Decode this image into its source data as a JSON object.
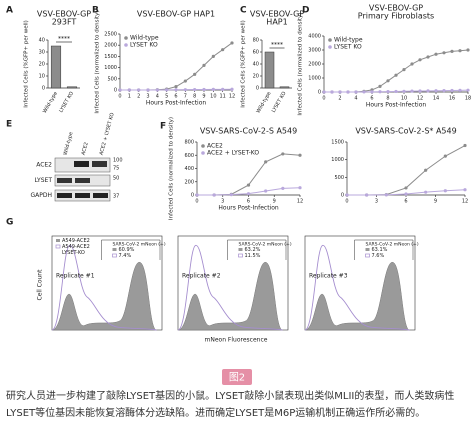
{
  "chart_data": [
    {
      "type": "bar",
      "panel": "A",
      "title": "VSV-EBOV-GP",
      "subtitle": "293FT",
      "ylabel": "Infected Cells (%GFP+ per well)",
      "categories": [
        "Wild-type",
        "LYSET KO"
      ],
      "values": [
        35,
        1
      ],
      "color": "#8c8c8c",
      "annotation": "****",
      "ylim": [
        0,
        40
      ],
      "yticks": [
        0,
        10,
        20,
        30,
        40
      ]
    },
    {
      "type": "line",
      "panel": "B",
      "title": "VSV-EBOV-GP HAP1",
      "ylabel": "Infected Cells (normalized to density)",
      "xlabel": "Hours Post-Infection",
      "x": [
        0,
        1,
        2,
        3,
        4,
        5,
        6,
        7,
        8,
        9,
        10,
        11,
        12
      ],
      "xlim": [
        0,
        12
      ],
      "xticks": [
        0,
        1,
        2,
        3,
        4,
        5,
        6,
        7,
        8,
        9,
        10,
        11,
        12
      ],
      "ylim": [
        0,
        2500
      ],
      "yticks": [
        0,
        500,
        1000,
        1500,
        2000,
        2500
      ],
      "legend": "upper left",
      "series": [
        {
          "name": "Wild-type",
          "color": "#8c8c8c",
          "values": [
            0,
            0,
            0,
            0,
            10,
            40,
            150,
            400,
            700,
            1100,
            1500,
            1800,
            2100
          ]
        },
        {
          "name": "LYSET KO",
          "color": "#b9a8dc",
          "values": [
            0,
            0,
            0,
            0,
            0,
            5,
            10,
            15,
            20,
            25,
            30,
            30,
            35
          ]
        }
      ]
    },
    {
      "type": "bar",
      "panel": "C",
      "title": "VSV-EBOV-GP",
      "subtitle": "HAP1",
      "ylabel": "Infected Cells (%GFP+ per well)",
      "categories": [
        "Wild-type",
        "LYSET KO"
      ],
      "values": [
        60,
        2
      ],
      "color": "#8c8c8c",
      "annotation": "****",
      "ylim": [
        0,
        80
      ],
      "yticks": [
        0,
        20,
        40,
        60,
        80
      ]
    },
    {
      "type": "line",
      "panel": "D",
      "title": "VSV-EBOV-GP",
      "subtitle": "Primary Fibroblasts",
      "ylabel": "Infected Cells (normalized to density)",
      "xlabel": "Hours Post-Infection",
      "x": [
        0,
        1,
        2,
        3,
        4,
        5,
        6,
        7,
        8,
        9,
        10,
        11,
        12,
        13,
        14,
        15,
        16,
        17,
        18
      ],
      "xlim": [
        0,
        18
      ],
      "xticks": [
        0,
        2,
        4,
        6,
        8,
        10,
        12,
        14,
        16,
        18
      ],
      "ylim": [
        0,
        4000
      ],
      "yticks": [
        0,
        1000,
        2000,
        3000,
        4000
      ],
      "legend": "upper left",
      "series": [
        {
          "name": "Wild-type",
          "color": "#8c8c8c",
          "values": [
            0,
            0,
            0,
            0,
            0,
            50,
            150,
            400,
            800,
            1200,
            1600,
            2000,
            2300,
            2500,
            2700,
            2800,
            2900,
            2950,
            3000
          ]
        },
        {
          "name": "LYSET KO",
          "color": "#b9a8dc",
          "values": [
            0,
            0,
            0,
            0,
            0,
            5,
            10,
            20,
            30,
            40,
            50,
            60,
            70,
            80,
            90,
            100,
            110,
            120,
            130
          ]
        }
      ]
    },
    {
      "type": "line",
      "panel": "F",
      "title": "VSV-SARS-CoV-2-S A549",
      "ylabel": "Infected Cells (normalized to density)",
      "xlabel": "Hours Post-Infection",
      "x": [
        0,
        2,
        4,
        6,
        8,
        10,
        12
      ],
      "xlim": [
        0,
        12
      ],
      "xticks": [
        0,
        3,
        6,
        9,
        12
      ],
      "ylim": [
        0,
        800
      ],
      "yticks": [
        0,
        200,
        400,
        600,
        800
      ],
      "legend": "upper left",
      "series": [
        {
          "name": "ACE2",
          "color": "#8c8c8c",
          "values": [
            0,
            0,
            10,
            150,
            500,
            620,
            600
          ]
        },
        {
          "name": "ACE2 + LYSET-KO",
          "color": "#b9a8dc",
          "values": [
            0,
            0,
            5,
            20,
            60,
            100,
            110
          ]
        }
      ]
    },
    {
      "type": "line",
      "title": "VSV-SARS-CoV-2-S* A549",
      "x": [
        0,
        2,
        4,
        6,
        8,
        10,
        12
      ],
      "xlim": [
        0,
        12
      ],
      "xticks": [
        0,
        3,
        6,
        9,
        12
      ],
      "ylim": [
        0,
        1500
      ],
      "yticks": [
        0,
        500,
        1000,
        1500
      ],
      "series": [
        {
          "name": "ACE2",
          "color": "#8c8c8c",
          "values": [
            0,
            0,
            10,
            200,
            700,
            1100,
            1400
          ]
        },
        {
          "name": "ACE2 + LYSET-KO",
          "color": "#b9a8dc",
          "values": [
            0,
            0,
            5,
            30,
            80,
            120,
            150
          ]
        }
      ]
    }
  ],
  "blot": {
    "panel": "E",
    "lanes": [
      "Wild-type",
      "ACE2",
      "ACE2 + LYSET KO"
    ],
    "rows": [
      "ACE2",
      "LYSET",
      "GAPDH"
    ],
    "markers": [
      "100",
      "75",
      "50",
      "37"
    ]
  },
  "flow": {
    "panel": "G",
    "legend": [
      "A549-ACE2",
      "A549-ACE2",
      "LYSET-KO"
    ],
    "gate_label": "SARS-CoV-2 mNeon (+)",
    "xlabel": "mNeon Fluorescence",
    "ylabel": "Cell Count",
    "replicates": [
      {
        "name": "Replicate #1",
        "percents": [
          "60.9%",
          "7.4%"
        ]
      },
      {
        "name": "Replicate #2",
        "percents": [
          "63.2%",
          "11.5%"
        ]
      },
      {
        "name": "Replicate #3",
        "percents": [
          "63.1%",
          "7.6%"
        ]
      }
    ]
  },
  "caption": {
    "figure_label": "图2",
    "lines": [
      "研究人员进一步构建了敲除LYSET基因的小鼠。LYSET敲除小鼠表现出类似MLII的表型，而人类致病性",
      "LYSET等位基因未能恢复溶酶体分选缺陷。进而确定LYSET是M6P运输机制正确运作所必需的。"
    ]
  }
}
